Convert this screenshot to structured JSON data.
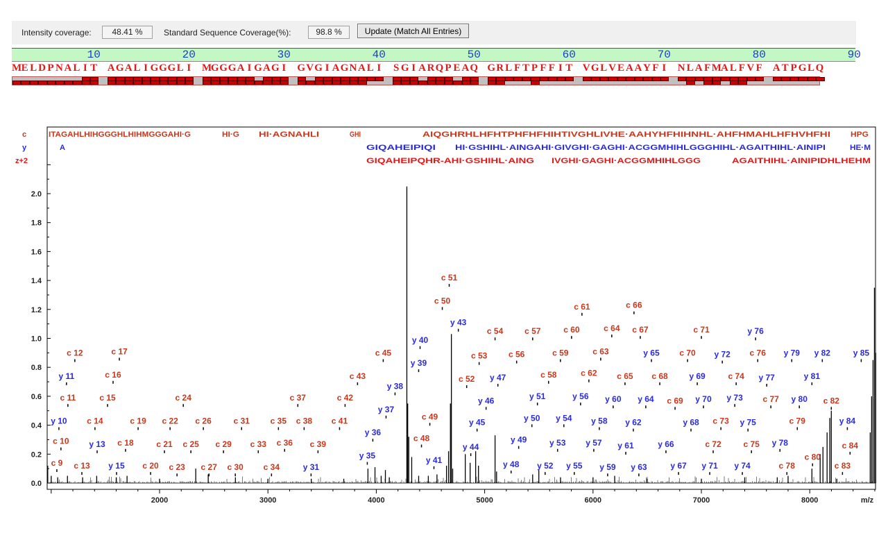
{
  "header": {
    "intensity_coverage_label": "Intensity coverage:",
    "intensity_coverage_value": "48.41 %",
    "sequence_coverage_label": "Standard Sequence Coverage(%):",
    "sequence_coverage_value": "98.8 %",
    "update_button": "Update (Match All Entries)"
  },
  "sequence": {
    "ruler": [
      "10",
      "20",
      "30",
      "40",
      "50",
      "60",
      "70",
      "80",
      "90"
    ],
    "groups": [
      "MELDPNALIT",
      "AGALIGGGLI",
      "MGGGAIGAGI",
      "GVGIAGNALI",
      "SGIARQPEAQ",
      "GRLFTPFFIT",
      "VGLVEAAYFI",
      "NLAFMALFVF",
      "ATPGLQ"
    ],
    "coverage_top": [
      "0000000011",
      "1111111111",
      "1111110111",
      "1011111111",
      "1110111011",
      "1111111111",
      "1111111111",
      "1111111111",
      "111111"
    ],
    "coverage_bottom": [
      "1111111111",
      "1111111111",
      "1111111111",
      "1111111100",
      "1111111111",
      "1100010000",
      "0000000000",
      "0101101100",
      "000000"
    ],
    "colors": {
      "residue": "#e01818",
      "ruler_bg": "#c3f7c3",
      "ruler_text": "#1a3fcf",
      "covered": "#d00000",
      "uncovered": "#c0c0c0"
    }
  },
  "chart_data": {
    "type": "line",
    "subtype": "mass-spectrum-stick",
    "xlabel": "m/z",
    "ylabel": "",
    "xlim": [
      962,
      8615
    ],
    "ylim": [
      0,
      2.2
    ],
    "xticks": [
      2000,
      3000,
      4000,
      5000,
      6000,
      7000,
      8000
    ],
    "xtick_labels": [
      "2000",
      "3000",
      "4000",
      "5000",
      "6000",
      "7000",
      "8000"
    ],
    "yticks": [
      0,
      0.2,
      0.4,
      0.6,
      0.8,
      1.0,
      1.2,
      1.4,
      1.6,
      1.8,
      2.0
    ],
    "ytick_labels": [
      "0.0",
      "0.2",
      "0.4",
      "0.6",
      "0.8",
      "1.0",
      "1.2",
      "1.4",
      "1.6",
      "1.8",
      "2.0"
    ],
    "grid": false,
    "colors": {
      "c": "#c8381c",
      "y": "#2a2ae0",
      "z2": "#e01818",
      "peaks": "#000000"
    },
    "fragment_rows": [
      {
        "label": "c",
        "color": "#c8381c",
        "segments": [
          "ITAGAHLHIHGGGHLHIHMGGGAHI·G",
          "HI·G",
          "HI·AGNAHLI",
          "GHI",
          "AIQGHRHLHFHTPHFHFHIHTIVGHLIVHE·AAHYHFHIHNHL·AHFHMAHLHFHVHFHI",
          "HPG"
        ]
      },
      {
        "label": "y",
        "color": "#2a2ae0",
        "segments": [
          "A",
          "GIQAHEIPIQI",
          "HI·GSHIHL·AINGAHI·GIVGHI·GAGHI·ACGGMHIHLGGGHIHL·AGAITHIHL·AINIPI",
          "HE·M"
        ]
      },
      {
        "label": "z+2",
        "color": "#e01818",
        "segments": [
          "GIQAHEIPQHR-AHI·GSHIHL·AING",
          "IVGHI·GAGHI·ACGGMHIHLGGG",
          "AGAITHIHL·AINIPIDHLHEHM"
        ]
      }
    ],
    "peaks": [
      [
        968,
        0.12
      ],
      [
        1000,
        0.05
      ],
      [
        1060,
        0.04
      ],
      [
        1150,
        0.05
      ],
      [
        1290,
        0.04
      ],
      [
        1420,
        0.05
      ],
      [
        1600,
        0.04
      ],
      [
        1700,
        0.05
      ],
      [
        2000,
        0.03
      ],
      [
        2334,
        0.1
      ],
      [
        2449,
        0.06
      ],
      [
        2700,
        0.04
      ],
      [
        3000,
        0.03
      ],
      [
        3400,
        0.03
      ],
      [
        3700,
        0.03
      ],
      [
        3923,
        0.1
      ],
      [
        3988,
        0.11
      ],
      [
        4045,
        0.05
      ],
      [
        4084,
        0.09
      ],
      [
        4120,
        0.04
      ],
      [
        4282,
        2.05
      ],
      [
        4290,
        0.55
      ],
      [
        4300,
        0.32
      ],
      [
        4327,
        0.18
      ],
      [
        4391,
        0.05
      ],
      [
        4480,
        0.05
      ],
      [
        4560,
        0.06
      ],
      [
        4648,
        0.12
      ],
      [
        4667,
        0.22
      ],
      [
        4684,
        0.55
      ],
      [
        4693,
        1.03
      ],
      [
        4705,
        0.1
      ],
      [
        4821,
        0.2
      ],
      [
        4866,
        0.14
      ],
      [
        4917,
        0.22
      ],
      [
        4943,
        0.12
      ],
      [
        5096,
        0.33
      ],
      [
        5110,
        0.08
      ],
      [
        5443,
        0.06
      ],
      [
        5500,
        0.09
      ],
      [
        5700,
        0.04
      ],
      [
        6000,
        0.04
      ],
      [
        6200,
        0.05
      ],
      [
        6500,
        0.03
      ],
      [
        7000,
        0.03
      ],
      [
        7400,
        0.04
      ],
      [
        7700,
        0.04
      ],
      [
        7800,
        0.05
      ],
      [
        8020,
        0.1
      ],
      [
        8096,
        0.2
      ],
      [
        8122,
        0.25
      ],
      [
        8160,
        0.35
      ],
      [
        8185,
        0.45
      ],
      [
        8199,
        0.5
      ],
      [
        8250,
        0.03
      ],
      [
        8558,
        0.35
      ],
      [
        8571,
        0.6
      ],
      [
        8584,
        0.85
      ],
      [
        8597,
        1.35
      ],
      [
        8609,
        0.9
      ]
    ],
    "labels": [
      {
        "t": "c 9",
        "ion": "c",
        "mz": 1052,
        "ly": 0.12
      },
      {
        "t": "c 10",
        "ion": "c",
        "mz": 1090,
        "ly": 0.27
      },
      {
        "t": "y 10",
        "ion": "y",
        "mz": 1071,
        "ly": 0.41
      },
      {
        "t": "c 11",
        "ion": "c",
        "mz": 1154,
        "ly": 0.57
      },
      {
        "t": "y 11",
        "ion": "y",
        "mz": 1141,
        "ly": 0.72
      },
      {
        "t": "c 12",
        "ion": "c",
        "mz": 1218,
        "ly": 0.88
      },
      {
        "t": "c 13",
        "ion": "c",
        "mz": 1283,
        "ly": 0.1
      },
      {
        "t": "c 14",
        "ion": "c",
        "mz": 1404,
        "ly": 0.41
      },
      {
        "t": "y 13",
        "ion": "y",
        "mz": 1424,
        "ly": 0.25
      },
      {
        "t": "c 15",
        "ion": "c",
        "mz": 1520,
        "ly": 0.57
      },
      {
        "t": "c 16",
        "ion": "c",
        "mz": 1571,
        "ly": 0.73
      },
      {
        "t": "c 17",
        "ion": "c",
        "mz": 1629,
        "ly": 0.89
      },
      {
        "t": "y 15",
        "ion": "y",
        "mz": 1603,
        "ly": 0.1
      },
      {
        "t": "c 18",
        "ion": "c",
        "mz": 1686,
        "ly": 0.26
      },
      {
        "t": "c 19",
        "ion": "c",
        "mz": 1802,
        "ly": 0.41
      },
      {
        "t": "c 20",
        "ion": "c",
        "mz": 1917,
        "ly": 0.1
      },
      {
        "t": "c 21",
        "ion": "c",
        "mz": 2045,
        "ly": 0.25
      },
      {
        "t": "c 22",
        "ion": "c",
        "mz": 2097,
        "ly": 0.41
      },
      {
        "t": "c 23",
        "ion": "c",
        "mz": 2161,
        "ly": 0.09
      },
      {
        "t": "c 24",
        "ion": "c",
        "mz": 2219,
        "ly": 0.57
      },
      {
        "t": "c 25",
        "ion": "c",
        "mz": 2289,
        "ly": 0.25
      },
      {
        "t": "c 26",
        "ion": "c",
        "mz": 2404,
        "ly": 0.41
      },
      {
        "t": "c 27",
        "ion": "c",
        "mz": 2456,
        "ly": 0.09
      },
      {
        "t": "c 29",
        "ion": "c",
        "mz": 2590,
        "ly": 0.25
      },
      {
        "t": "c 30",
        "ion": "c",
        "mz": 2699,
        "ly": 0.09
      },
      {
        "t": "c 31",
        "ion": "c",
        "mz": 2757,
        "ly": 0.41
      },
      {
        "t": "c 33",
        "ion": "c",
        "mz": 2911,
        "ly": 0.25
      },
      {
        "t": "c 34",
        "ion": "c",
        "mz": 3033,
        "ly": 0.09
      },
      {
        "t": "c 35",
        "ion": "c",
        "mz": 3097,
        "ly": 0.41
      },
      {
        "t": "c 36",
        "ion": "c",
        "mz": 3154,
        "ly": 0.26
      },
      {
        "t": "c 37",
        "ion": "c",
        "mz": 3276,
        "ly": 0.57
      },
      {
        "t": "c 38",
        "ion": "c",
        "mz": 3334,
        "ly": 0.41
      },
      {
        "t": "c 39",
        "ion": "c",
        "mz": 3462,
        "ly": 0.25
      },
      {
        "t": "y 31",
        "ion": "y",
        "mz": 3398,
        "ly": 0.09
      },
      {
        "t": "c 41",
        "ion": "c",
        "mz": 3661,
        "ly": 0.41
      },
      {
        "t": "c 42",
        "ion": "c",
        "mz": 3712,
        "ly": 0.57
      },
      {
        "t": "c 43",
        "ion": "c",
        "mz": 3827,
        "ly": 0.72
      },
      {
        "t": "c 45",
        "ion": "c",
        "mz": 4064,
        "ly": 0.88
      },
      {
        "t": "y 35",
        "ion": "y",
        "mz": 3917,
        "ly": 0.17
      },
      {
        "t": "y 36",
        "ion": "y",
        "mz": 3968,
        "ly": 0.33
      },
      {
        "t": "y 37",
        "ion": "y",
        "mz": 4090,
        "ly": 0.49
      },
      {
        "t": "y 38",
        "ion": "y",
        "mz": 4173,
        "ly": 0.65
      },
      {
        "t": "y 39",
        "ion": "y",
        "mz": 4391,
        "ly": 0.81
      },
      {
        "t": "y 40",
        "ion": "y",
        "mz": 4404,
        "ly": 0.97
      },
      {
        "t": "c 48",
        "ion": "c",
        "mz": 4417,
        "ly": 0.29
      },
      {
        "t": "c 49",
        "ion": "c",
        "mz": 4494,
        "ly": 0.44
      },
      {
        "t": "c 50",
        "ion": "c",
        "mz": 4609,
        "ly": 1.24
      },
      {
        "t": "c 51",
        "ion": "c",
        "mz": 4673,
        "ly": 1.4
      },
      {
        "t": "y 41",
        "ion": "y",
        "mz": 4532,
        "ly": 0.14
      },
      {
        "t": "y 43",
        "ion": "y",
        "mz": 4757,
        "ly": 1.09
      },
      {
        "t": "c 52",
        "ion": "c",
        "mz": 4834,
        "ly": 0.7
      },
      {
        "t": "c 53",
        "ion": "c",
        "mz": 4949,
        "ly": 0.86
      },
      {
        "t": "c 54",
        "ion": "c",
        "mz": 5096,
        "ly": 1.03
      },
      {
        "t": "y 44",
        "ion": "y",
        "mz": 4872,
        "ly": 0.23
      },
      {
        "t": "y 45",
        "ion": "y",
        "mz": 4930,
        "ly": 0.4
      },
      {
        "t": "y 46",
        "ion": "y",
        "mz": 5013,
        "ly": 0.55
      },
      {
        "t": "y 47",
        "ion": "y",
        "mz": 5122,
        "ly": 0.71
      },
      {
        "t": "c 56",
        "ion": "c",
        "mz": 5295,
        "ly": 0.87
      },
      {
        "t": "c 57",
        "ion": "c",
        "mz": 5443,
        "ly": 1.03
      },
      {
        "t": "y 48",
        "ion": "y",
        "mz": 5244,
        "ly": 0.11
      },
      {
        "t": "y 49",
        "ion": "y",
        "mz": 5314,
        "ly": 0.28
      },
      {
        "t": "y 50",
        "ion": "y",
        "mz": 5436,
        "ly": 0.43
      },
      {
        "t": "y 51",
        "ion": "y",
        "mz": 5487,
        "ly": 0.58
      },
      {
        "t": "c 58",
        "ion": "c",
        "mz": 5590,
        "ly": 0.73
      },
      {
        "t": "c 59",
        "ion": "c",
        "mz": 5699,
        "ly": 0.88
      },
      {
        "t": "c 60",
        "ion": "c",
        "mz": 5802,
        "ly": 1.04
      },
      {
        "t": "c 61",
        "ion": "c",
        "mz": 5898,
        "ly": 1.2
      },
      {
        "t": "y 52",
        "ion": "y",
        "mz": 5558,
        "ly": 0.1
      },
      {
        "t": "y 53",
        "ion": "y",
        "mz": 5673,
        "ly": 0.26
      },
      {
        "t": "y 54",
        "ion": "y",
        "mz": 5731,
        "ly": 0.43
      },
      {
        "t": "y 55",
        "ion": "y",
        "mz": 5827,
        "ly": 0.1
      },
      {
        "t": "y 56",
        "ion": "y",
        "mz": 5885,
        "ly": 0.58
      },
      {
        "t": "y 57",
        "ion": "y",
        "mz": 6007,
        "ly": 0.26
      },
      {
        "t": "y 58",
        "ion": "y",
        "mz": 6058,
        "ly": 0.41
      },
      {
        "t": "c 62",
        "ion": "c",
        "mz": 5962,
        "ly": 0.74
      },
      {
        "t": "c 63",
        "ion": "c",
        "mz": 6071,
        "ly": 0.89
      },
      {
        "t": "c 64",
        "ion": "c",
        "mz": 6173,
        "ly": 1.05
      },
      {
        "t": "c 66",
        "ion": "c",
        "mz": 6378,
        "ly": 1.21
      },
      {
        "t": "c 67",
        "ion": "c",
        "mz": 6436,
        "ly": 1.04
      },
      {
        "t": "y 59",
        "ion": "y",
        "mz": 6135,
        "ly": 0.09
      },
      {
        "t": "y 60",
        "ion": "y",
        "mz": 6186,
        "ly": 0.56
      },
      {
        "t": "y 61",
        "ion": "y",
        "mz": 6302,
        "ly": 0.24
      },
      {
        "t": "y 62",
        "ion": "y",
        "mz": 6372,
        "ly": 0.4
      },
      {
        "t": "y 63",
        "ion": "y",
        "mz": 6423,
        "ly": 0.09
      },
      {
        "t": "c 65",
        "ion": "c",
        "mz": 6295,
        "ly": 0.72
      },
      {
        "t": "y 64",
        "ion": "y",
        "mz": 6487,
        "ly": 0.56
      },
      {
        "t": "y 65",
        "ion": "y",
        "mz": 6539,
        "ly": 0.88
      },
      {
        "t": "c 68",
        "ion": "c",
        "mz": 6616,
        "ly": 0.72
      },
      {
        "t": "y 66",
        "ion": "y",
        "mz": 6673,
        "ly": 0.25
      },
      {
        "t": "c 69",
        "ion": "c",
        "mz": 6757,
        "ly": 0.55
      },
      {
        "t": "c 70",
        "ion": "c",
        "mz": 6872,
        "ly": 0.88
      },
      {
        "t": "c 71",
        "ion": "c",
        "mz": 7000,
        "ly": 1.04
      },
      {
        "t": "y 67",
        "ion": "y",
        "mz": 6789,
        "ly": 0.1
      },
      {
        "t": "y 68",
        "ion": "y",
        "mz": 6904,
        "ly": 0.4
      },
      {
        "t": "y 69",
        "ion": "y",
        "mz": 6962,
        "ly": 0.72
      },
      {
        "t": "y 70",
        "ion": "y",
        "mz": 7019,
        "ly": 0.56
      },
      {
        "t": "y 71",
        "ion": "y",
        "mz": 7077,
        "ly": 0.1
      },
      {
        "t": "c 72",
        "ion": "c",
        "mz": 7109,
        "ly": 0.25
      },
      {
        "t": "c 73",
        "ion": "c",
        "mz": 7180,
        "ly": 0.41
      },
      {
        "t": "y 72",
        "ion": "y",
        "mz": 7193,
        "ly": 0.87
      },
      {
        "t": "y 73",
        "ion": "y",
        "mz": 7308,
        "ly": 0.57
      },
      {
        "t": "c 74",
        "ion": "c",
        "mz": 7321,
        "ly": 0.72
      },
      {
        "t": "y 74",
        "ion": "y",
        "mz": 7378,
        "ly": 0.1
      },
      {
        "t": "y 75",
        "ion": "y",
        "mz": 7430,
        "ly": 0.4
      },
      {
        "t": "c 75",
        "ion": "c",
        "mz": 7462,
        "ly": 0.25
      },
      {
        "t": "c 76",
        "ion": "c",
        "mz": 7520,
        "ly": 0.88
      },
      {
        "t": "y 76",
        "ion": "y",
        "mz": 7500,
        "ly": 1.03
      },
      {
        "t": "y 77",
        "ion": "y",
        "mz": 7603,
        "ly": 0.71
      },
      {
        "t": "c 77",
        "ion": "c",
        "mz": 7641,
        "ly": 0.56
      },
      {
        "t": "y 78",
        "ion": "y",
        "mz": 7725,
        "ly": 0.26
      },
      {
        "t": "c 78",
        "ion": "c",
        "mz": 7789,
        "ly": 0.1
      },
      {
        "t": "y 79",
        "ion": "y",
        "mz": 7834,
        "ly": 0.88
      },
      {
        "t": "c 79",
        "ion": "c",
        "mz": 7885,
        "ly": 0.41
      },
      {
        "t": "y 80",
        "ion": "y",
        "mz": 7904,
        "ly": 0.56
      },
      {
        "t": "y 81",
        "ion": "y",
        "mz": 8020,
        "ly": 0.72
      },
      {
        "t": "y 82",
        "ion": "y",
        "mz": 8116,
        "ly": 0.88
      },
      {
        "t": "c 80",
        "ion": "c",
        "mz": 8026,
        "ly": 0.16
      },
      {
        "t": "c 82",
        "ion": "c",
        "mz": 8199,
        "ly": 0.55
      },
      {
        "t": "c 83",
        "ion": "c",
        "mz": 8302,
        "ly": 0.1
      },
      {
        "t": "y 84",
        "ion": "y",
        "mz": 8347,
        "ly": 0.41
      },
      {
        "t": "c 84",
        "ion": "c",
        "mz": 8372,
        "ly": 0.24
      },
      {
        "t": "y 85",
        "ion": "y",
        "mz": 8475,
        "ly": 0.88
      }
    ]
  }
}
